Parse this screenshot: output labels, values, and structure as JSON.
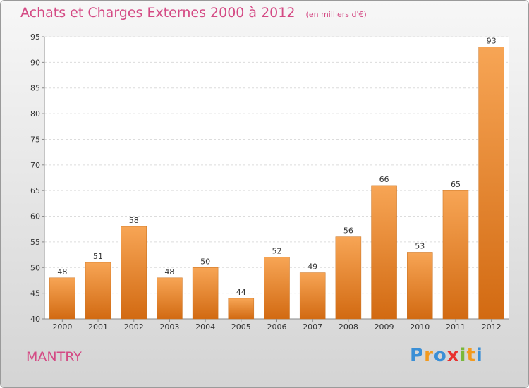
{
  "header": {
    "title": "Achats et Charges Externes 2000 à 2012",
    "subtitle": "(en milliers d'€)"
  },
  "commune": "MANTRY",
  "brand": {
    "letters": [
      "P",
      "r",
      "o",
      "x",
      "i",
      "t",
      "i"
    ],
    "colors": [
      "#3a8fd6",
      "#f39a1e",
      "#3a8fd6",
      "#e8312f",
      "#7ab83a",
      "#f39a1e",
      "#3a8fd6"
    ]
  },
  "chart_data": {
    "type": "bar",
    "categories": [
      "2000",
      "2001",
      "2002",
      "2003",
      "2004",
      "2005",
      "2006",
      "2007",
      "2008",
      "2009",
      "2010",
      "2011",
      "2012"
    ],
    "values": [
      48,
      51,
      58,
      48,
      50,
      44,
      52,
      49,
      56,
      66,
      53,
      65,
      93
    ],
    "ylim": [
      40,
      95
    ],
    "yticks": [
      40,
      45,
      50,
      55,
      60,
      65,
      70,
      75,
      80,
      85,
      90,
      95
    ],
    "grid": true,
    "bar_color": "#f0922e"
  }
}
